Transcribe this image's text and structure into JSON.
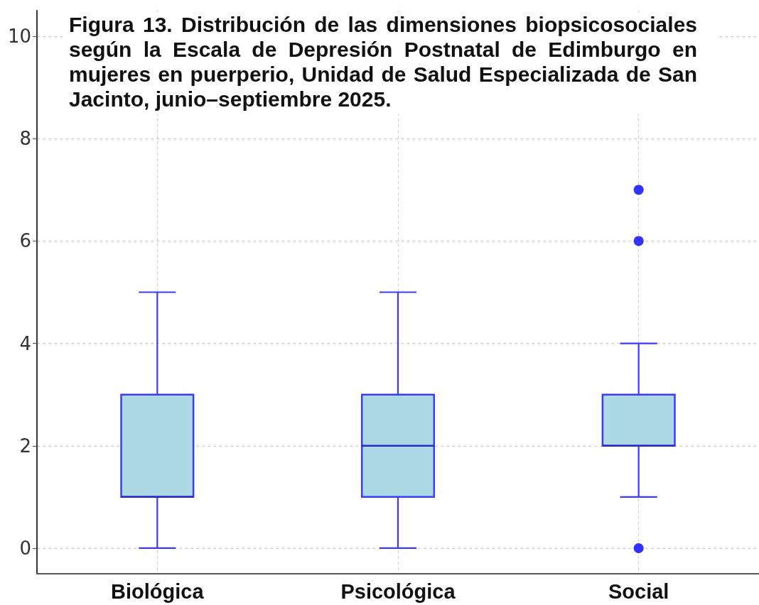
{
  "chart_data": {
    "type": "box",
    "title": "Figura 13. Distribución de las dimensiones biopsicosociales según la Escala de Depresión Postnatal de Edimburgo en mujeres en puerperio, Unidad de Salud Especializada de San Jacinto, junio–septiembre 2025.",
    "categories": [
      "Biológica",
      "Psicológica",
      "Social"
    ],
    "boxes": [
      {
        "low": 0,
        "q1": 1,
        "median": 1,
        "q3": 3,
        "high": 5
      },
      {
        "low": 0,
        "q1": 1,
        "median": 2,
        "q3": 3,
        "high": 5
      },
      {
        "low": 1,
        "q1": 2,
        "median": 2,
        "q3": 3,
        "high": 4,
        "outliers": [
          0,
          6,
          7
        ]
      }
    ],
    "color": "#add8e6",
    "ylim": [
      -0.5,
      10.5
    ],
    "yticks": [
      0,
      2,
      4,
      6,
      8,
      10
    ],
    "grid": true
  }
}
